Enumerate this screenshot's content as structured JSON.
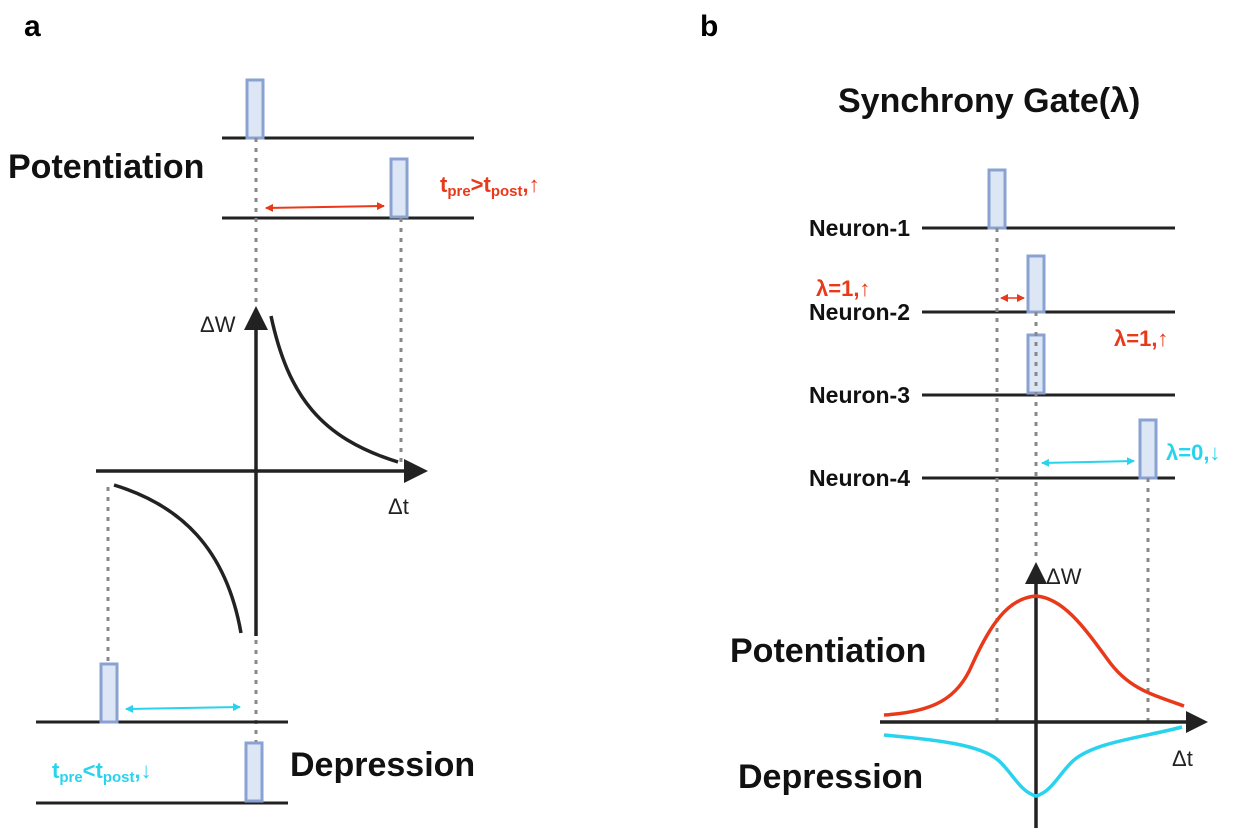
{
  "panel_a": {
    "letter": "a",
    "potentiation_label": "Potentiation",
    "depression_label": "Depression",
    "pot_rule": {
      "main": "t",
      "sub1": "pre",
      "op": ">t",
      "sub2": "post",
      "tail": ",↑"
    },
    "dep_rule": {
      "main": "t",
      "sub1": "pre",
      "op": "<t",
      "sub2": "post",
      "tail": ",↓"
    },
    "y_axis_label": "ΔW",
    "x_axis_label": "Δt"
  },
  "panel_b": {
    "letter": "b",
    "title": "Synchrony Gate(λ)",
    "neurons": [
      "Neuron-1",
      "Neuron-2",
      "Neuron-3",
      "Neuron-4"
    ],
    "gate_label_1": "λ=1,↑",
    "gate_label_2": "λ=1,↑",
    "gate_label_3": "λ=0,↓",
    "y_axis_label": "ΔW",
    "x_axis_label": "Δt",
    "potentiation_label": "Potentiation",
    "depression_label": "Depression"
  },
  "colors": {
    "potentiation": "#e8391b",
    "depression": "#29d3ee",
    "spike_fill": "#dde6f5",
    "spike_stroke": "#8aa2d2",
    "axis": "#222222",
    "dotted": "#888888"
  }
}
